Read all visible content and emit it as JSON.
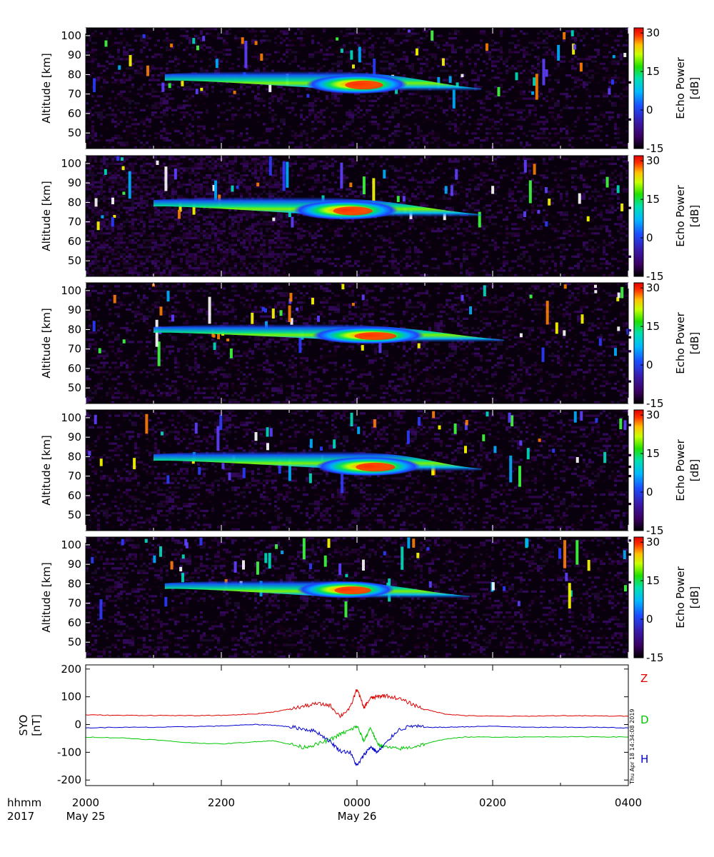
{
  "chart_data": [
    {
      "type": "heatmap",
      "panel": 1,
      "ylabel": "Altitude [km]",
      "yticks": [
        50,
        60,
        70,
        80,
        90,
        100
      ],
      "ylim": [
        42,
        104
      ],
      "xlim_hours": [
        20,
        28
      ],
      "colorbar": {
        "label": "Echo Power [dB]",
        "ticks": [
          30,
          15,
          0,
          -15
        ],
        "range": [
          -15,
          32
        ]
      },
      "echo_layer": {
        "start": "2110",
        "end": "0150",
        "top_km": 81,
        "bottom_km": 72,
        "peak_time": "0000",
        "peak_alt_km": 75,
        "peak_db": 28
      }
    },
    {
      "type": "heatmap",
      "panel": 2,
      "ylabel": "Altitude [km]",
      "yticks": [
        50,
        60,
        70,
        80,
        90,
        100
      ],
      "ylim": [
        42,
        104
      ],
      "xlim_hours": [
        20,
        28
      ],
      "colorbar": {
        "label": "Echo Power [dB]",
        "ticks": [
          30,
          15,
          0,
          -15
        ],
        "range": [
          -15,
          32
        ]
      },
      "echo_layer": {
        "start": "2100",
        "end": "0150",
        "top_km": 82,
        "bottom_km": 73,
        "peak_time": "2350",
        "peak_alt_km": 76,
        "peak_db": 30
      }
    },
    {
      "type": "heatmap",
      "panel": 3,
      "ylabel": "Altitude [km]",
      "yticks": [
        50,
        60,
        70,
        80,
        90,
        100
      ],
      "ylim": [
        42,
        104
      ],
      "xlim_hours": [
        20,
        28
      ],
      "colorbar": {
        "label": "Echo Power [dB]",
        "ticks": [
          30,
          15,
          0,
          -15
        ],
        "range": [
          -15,
          32
        ]
      },
      "echo_layer": {
        "start": "2100",
        "end": "0210",
        "top_km": 82,
        "bottom_km": 74,
        "peak_time": "0010",
        "peak_alt_km": 77,
        "peak_db": 27
      }
    },
    {
      "type": "heatmap",
      "panel": 4,
      "ylabel": "Altitude [km]",
      "yticks": [
        50,
        60,
        70,
        80,
        90,
        100
      ],
      "ylim": [
        42,
        104
      ],
      "xlim_hours": [
        20,
        28
      ],
      "colorbar": {
        "label": "Echo Power [dB]",
        "ticks": [
          30,
          15,
          0,
          -15
        ],
        "range": [
          -15,
          32
        ]
      },
      "echo_layer": {
        "start": "2100",
        "end": "0150",
        "top_km": 82,
        "bottom_km": 73,
        "peak_time": "0010",
        "peak_alt_km": 75,
        "peak_db": 29
      }
    },
    {
      "type": "heatmap",
      "panel": 5,
      "ylabel": "Altitude [km]",
      "yticks": [
        50,
        60,
        70,
        80,
        90,
        100
      ],
      "ylim": [
        42,
        104
      ],
      "xlim_hours": [
        20,
        28
      ],
      "colorbar": {
        "label": "Echo Power [dB]",
        "ticks": [
          30,
          15,
          0,
          -15
        ],
        "range": [
          -15,
          32
        ]
      },
      "echo_layer": {
        "start": "2110",
        "end": "0140",
        "top_km": 81,
        "bottom_km": 73,
        "peak_time": "2350",
        "peak_alt_km": 77,
        "peak_db": 25
      }
    },
    {
      "type": "line",
      "panel": 6,
      "ylabel": "SYO [nT]",
      "yticks": [
        200,
        100,
        0,
        -100,
        -200
      ],
      "ylim": [
        -220,
        215
      ],
      "xlim_hours": [
        20,
        28
      ],
      "x_hours": [
        20.0,
        20.5,
        21.0,
        21.5,
        22.0,
        22.5,
        22.75,
        23.0,
        23.2,
        23.4,
        23.6,
        23.75,
        23.9,
        24.0,
        24.1,
        24.2,
        24.3,
        24.4,
        24.6,
        24.8,
        25.0,
        25.3,
        25.6,
        26.0,
        26.5,
        27.0,
        27.5,
        28.0
      ],
      "series": [
        {
          "name": "Z",
          "color": "#e00000",
          "values": [
            35,
            33,
            33,
            32,
            33,
            38,
            45,
            55,
            65,
            75,
            70,
            30,
            60,
            130,
            60,
            95,
            100,
            105,
            95,
            75,
            55,
            38,
            32,
            30,
            30,
            32,
            31,
            30
          ]
        },
        {
          "name": "D",
          "color": "#00c800",
          "values": [
            -45,
            -48,
            -55,
            -65,
            -70,
            -62,
            -58,
            -70,
            -82,
            -72,
            -55,
            -35,
            -20,
            -5,
            -60,
            -10,
            -70,
            -80,
            -88,
            -82,
            -70,
            -52,
            -45,
            -45,
            -45,
            -44,
            -44,
            -45
          ]
        },
        {
          "name": "H",
          "color": "#0000d0",
          "values": [
            -12,
            -10,
            -10,
            -8,
            -5,
            0,
            -2,
            -8,
            -15,
            -25,
            -60,
            -95,
            -100,
            -150,
            -110,
            -80,
            -100,
            -75,
            -20,
            -5,
            -10,
            -10,
            -8,
            -6,
            -10,
            -10,
            -10,
            -12
          ]
        }
      ],
      "stamp": "Thu Apr 18 14:34:08 2019"
    }
  ],
  "xaxis": {
    "row_label_time": "hhmm",
    "row_label_year": "2017",
    "ticks": [
      {
        "hour": 20,
        "time": "2000",
        "date": "May 25"
      },
      {
        "hour": 22,
        "time": "2200",
        "date": ""
      },
      {
        "hour": 24,
        "time": "0000",
        "date": "May 26"
      },
      {
        "hour": 26,
        "time": "0200",
        "date": ""
      },
      {
        "hour": 28,
        "time": "0400",
        "date": ""
      }
    ]
  }
}
